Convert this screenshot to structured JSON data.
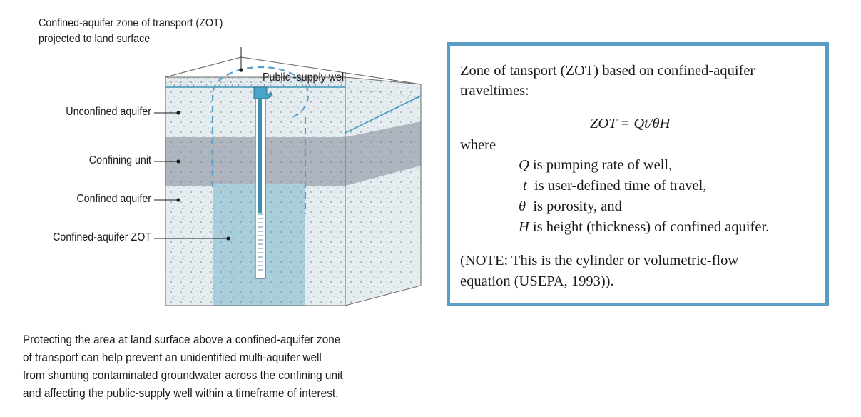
{
  "diagram": {
    "callout_line1": "Confined-aquifer zone of transport (ZOT)",
    "callout_line2": "projected to land surface",
    "well_label": "Public -supply well",
    "layers": {
      "unconfined": "Unconfined aquifer",
      "confining": "Confining unit",
      "confined": "Confined aquifer",
      "zot": "Confined-aquifer ZOT"
    }
  },
  "caption": [
    "Protecting the area at land surface above a confined-aquifer zone",
    "of transport can help prevent an unidentified multi-aquifer well",
    "from shunting contaminated groundwater across the confining unit",
    "and affecting the public-supply well within a timeframe of interest."
  ],
  "equation_box": {
    "heading_line1": "Zone of tansport (ZOT) based on confined-aquifer",
    "heading_line2": "traveltimes:",
    "formula": "ZOT = Qt/θH",
    "where": "where",
    "definitions": [
      {
        "symbol": "Q",
        "text": " is pumping rate of well,"
      },
      {
        "symbol": "t",
        "text": "  is user-defined time of travel,"
      },
      {
        "symbol": "θ",
        "text": "  is porosity, and"
      },
      {
        "symbol": "H",
        "text": " is height (thickness) of confined aquifer."
      }
    ],
    "note_line1": "(NOTE: This is the cylinder or volumetric-flow",
    "note_line2": "equation (USEPA, 1993))."
  },
  "colors": {
    "box_border": "#5b9cc6",
    "water_line": "#3d97b5",
    "zot_dashes": "#5a9fc5",
    "confining_unit": "#aeb5bf",
    "zot_fill": "#a9cfdd",
    "aquifer_fill": "#e6edf1"
  }
}
